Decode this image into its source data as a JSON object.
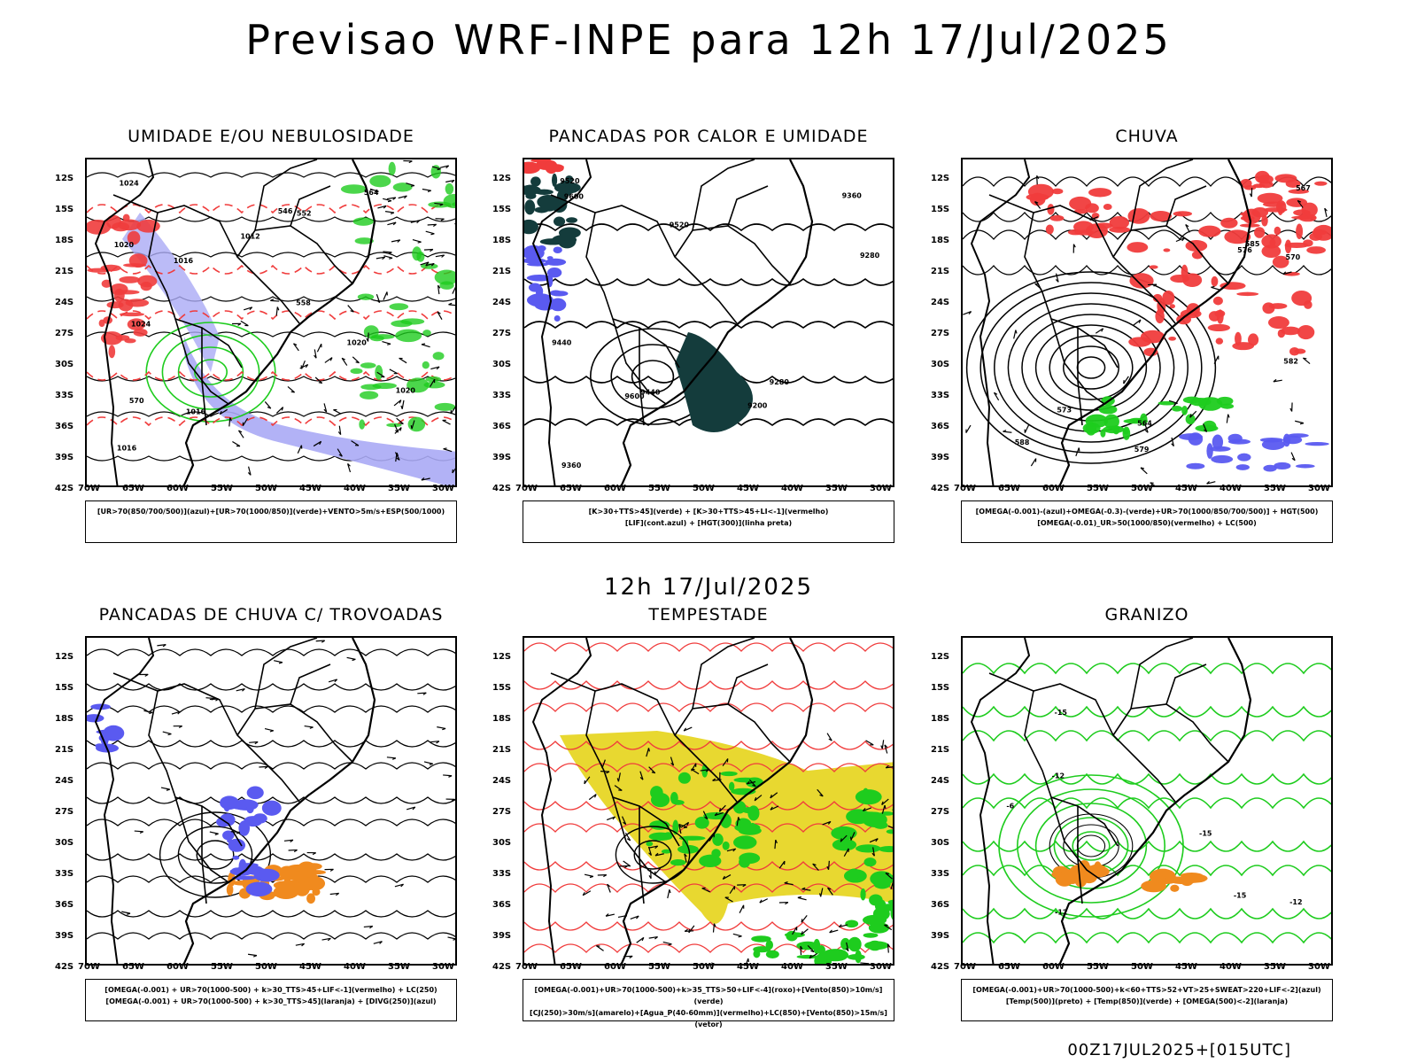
{
  "header": {
    "title": "Previsao WRF-INPE  para 12h 17/Jul/2025",
    "mid_title": "12h 17/Jul/2025",
    "footer": "00Z17JUL2025+[015UTC]"
  },
  "axes": {
    "lat_labels": [
      "12S",
      "15S",
      "18S",
      "21S",
      "24S",
      "27S",
      "30S",
      "33S",
      "36S",
      "39S",
      "42S"
    ],
    "lon_labels": [
      "70W",
      "65W",
      "60W",
      "55W",
      "50W",
      "45W",
      "40W",
      "35W",
      "30W"
    ]
  },
  "panels": [
    {
      "id": "umidade",
      "title": "UMIDADE E/OU NEBULOSIDADE",
      "legend": [
        "[UR>70(850/700/500)](azul)+[UR>70(1000/850)](verde)+VENTO>5m/s+ESP(500/1000)"
      ],
      "contour_labels": [
        "1020",
        "1016",
        "1024",
        "1012",
        "1016",
        "570",
        "564",
        "558",
        "552",
        "546",
        "1020",
        "1016",
        "1020",
        "1024"
      ]
    },
    {
      "id": "pancadas-calor",
      "title": "PANCADAS POR CALOR E UMIDADE",
      "legend": [
        "[K>30+TTS>45](verde) + [K>30+TTS>45+LI<-1](vermelho)",
        "[LIF](cont.azul) + [HGT(300)](linha preta)"
      ],
      "contour_labels": [
        "9600",
        "9520",
        "9440",
        "9360",
        "9280",
        "9200",
        "9520",
        "9440",
        "9360",
        "9280",
        "9600"
      ]
    },
    {
      "id": "chuva",
      "title": "CHUVA",
      "legend": [
        "[OMEGA(-0.001)-(azul)+OMEGA(-0.3)-(verde)+UR>70(1000/850/700/500)] + HGT(500)",
        "[OMEGA(-0.01)_UR>50(1000/850)(vermelho) + LC(500)"
      ],
      "contour_labels": [
        "588",
        "585",
        "582",
        "579",
        "576",
        "573",
        "570",
        "567",
        "564"
      ]
    },
    {
      "id": "pancadas-trovoadas",
      "title": "PANCADAS DE CHUVA C/ TROVOADAS",
      "legend": [
        "[OMEGA(-0.001) + UR>70(1000-500) + k>30_TTS>45+LIF<-1](vermelho) + LC(250)",
        "[OMEGA(-0.001) + UR>70(1000-500) + k>30_TTS>45](laranja) + [DIVG(250)](azul)"
      ],
      "contour_labels": []
    },
    {
      "id": "tempestade",
      "title": "TEMPESTADE",
      "legend": [
        "[OMEGA(-0.001)+UR>70(1000-500)+k>35_TTS>50+LIF<-4](roxo)+[Vento(850)>10m/s](verde)",
        "[CJ(250)>30m/s](amarelo)+[Agua_P(40-60mm)](vermelho)+LC(850)+[Vento(850)>15m/s](vetor)"
      ],
      "contour_labels": []
    },
    {
      "id": "granizo",
      "title": "GRANIZO",
      "legend": [
        "[OMEGA(-0.001)+UR>70(1000-500)+k<60+TTS>52+VT>25+SWEAT>220+LIF<-2](azul)",
        "[Temp(500)](preto) + [Temp(850)](verde) + [OMEGA(500)<-2](laranja)"
      ],
      "contour_labels": [
        "-12",
        "-12",
        "-15",
        "-6",
        "-15",
        "-12",
        "-15"
      ]
    }
  ],
  "colors": {
    "blue": "#5a5af0",
    "lightblue": "#aaaaf5",
    "green": "#1ecc1e",
    "red": "#f03c3c",
    "orange": "#f08a1e",
    "yellow": "#e8d830",
    "dark": "#143c3c"
  }
}
